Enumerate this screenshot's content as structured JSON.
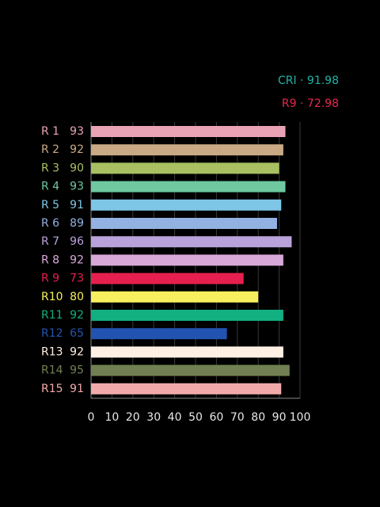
{
  "chart_data": {
    "type": "barh",
    "annotations": [
      {
        "text": "CRI · 91.98",
        "color": "#22b2a6"
      },
      {
        "text": "R9 · 72.98",
        "color": "#e8284e"
      }
    ],
    "categories": [
      "R 1",
      "R 2",
      "R 3",
      "R 4",
      "R 5",
      "R 6",
      "R 7",
      "R 8",
      "R 9",
      "R10",
      "R11",
      "R12",
      "R13",
      "R14",
      "R15"
    ],
    "values": [
      93,
      92,
      90,
      93,
      91,
      89,
      96,
      92,
      73,
      80,
      92,
      65,
      92,
      95,
      91
    ],
    "colors": [
      "#e9a3b4",
      "#c9aa84",
      "#a9c062",
      "#6fc8a0",
      "#7ec6e6",
      "#93b2e2",
      "#b9a2da",
      "#d8a9d8",
      "#e6204e",
      "#f7ef5e",
      "#12b080",
      "#2353b0",
      "#fff0e4",
      "#718052",
      "#f2a9a9"
    ],
    "xlim": [
      0,
      100
    ],
    "xticks": [
      0,
      10,
      20,
      30,
      40,
      50,
      60,
      70,
      80,
      90,
      100
    ],
    "grid": true
  }
}
